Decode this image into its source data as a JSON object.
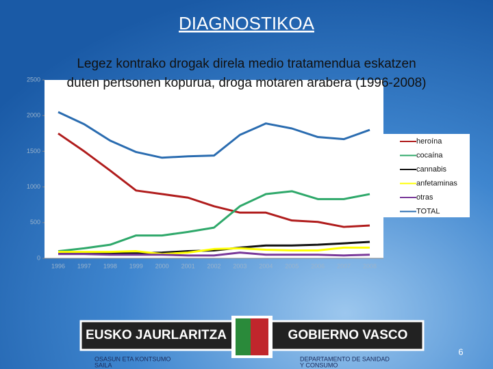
{
  "slide_title": "DIAGNOSTIKOA",
  "chart_data": {
    "type": "line",
    "title": [
      "Legez kontrako drogak direla medio tratamendua eskatzen",
      "duten pertsonen kopurua, droga motaren arabera (1996-2008)"
    ],
    "categories": [
      "1996",
      "1997",
      "1998",
      "1999",
      "2000",
      "2001",
      "2002",
      "2003",
      "2004",
      "2005",
      "2006",
      "2007",
      "2008"
    ],
    "series": [
      {
        "name": "heroína",
        "color": "#b01c1c",
        "values": [
          1750,
          1500,
          1230,
          950,
          900,
          850,
          730,
          640,
          640,
          530,
          510,
          440,
          460
        ]
      },
      {
        "name": "cocaína",
        "color": "#2ea86a",
        "values": [
          100,
          140,
          190,
          320,
          320,
          370,
          430,
          730,
          900,
          940,
          830,
          830,
          900
        ]
      },
      {
        "name": "cannabis",
        "color": "#111111",
        "values": [
          70,
          80,
          70,
          70,
          80,
          100,
          110,
          150,
          180,
          180,
          190,
          210,
          230
        ]
      },
      {
        "name": "anfetaminas",
        "color": "#ffff00",
        "values": [
          90,
          90,
          90,
          100,
          60,
          80,
          130,
          140,
          120,
          110,
          110,
          150,
          150
        ]
      },
      {
        "name": "otras",
        "color": "#7a3a9a",
        "values": [
          60,
          60,
          50,
          50,
          50,
          40,
          40,
          80,
          50,
          50,
          50,
          40,
          50
        ]
      },
      {
        "name": "TOTAL",
        "color": "#2a6cb0",
        "values": [
          2050,
          1880,
          1650,
          1490,
          1410,
          1430,
          1440,
          1730,
          1890,
          1820,
          1700,
          1670,
          1800
        ]
      }
    ],
    "ylim": [
      0,
      2500
    ],
    "yticks": [
      0,
      500,
      1000,
      1500,
      2000,
      2500
    ],
    "grid": false,
    "legend": "right"
  },
  "logo": {
    "left": "EUSKO JAURLARITZA",
    "right": "GOBIERNO VASCO",
    "left_caption": [
      "OSASUN ETA KONTSUMO",
      "SAILA"
    ],
    "right_caption": [
      "DEPARTAMENTO DE SANIDAD",
      "Y CONSUMO"
    ]
  },
  "page_number": "6"
}
